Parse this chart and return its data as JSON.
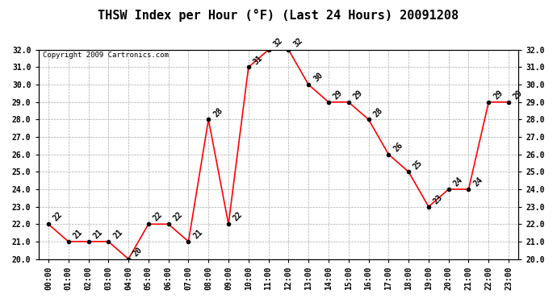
{
  "title": "THSW Index per Hour (°F) (Last 24 Hours) 20091208",
  "copyright": "Copyright 2009 Cartronics.com",
  "hours": [
    "00:00",
    "01:00",
    "02:00",
    "03:00",
    "04:00",
    "05:00",
    "06:00",
    "07:00",
    "08:00",
    "09:00",
    "10:00",
    "11:00",
    "12:00",
    "13:00",
    "14:00",
    "15:00",
    "16:00",
    "17:00",
    "18:00",
    "19:00",
    "20:00",
    "21:00",
    "22:00",
    "23:00"
  ],
  "values": [
    22,
    21,
    21,
    21,
    20,
    22,
    22,
    21,
    28,
    22,
    31,
    32,
    32,
    30,
    29,
    29,
    28,
    26,
    25,
    23,
    24,
    24,
    29,
    29
  ],
  "ylim": [
    20.0,
    32.0
  ],
  "yticks": [
    20.0,
    21.0,
    22.0,
    23.0,
    24.0,
    25.0,
    26.0,
    27.0,
    28.0,
    29.0,
    30.0,
    31.0,
    32.0
  ],
  "line_color": "red",
  "marker_color": "black",
  "bg_color": "white",
  "grid_color": "#aaaaaa",
  "title_fontsize": 11,
  "label_fontsize": 7,
  "tick_fontsize": 7,
  "copyright_fontsize": 6.5
}
